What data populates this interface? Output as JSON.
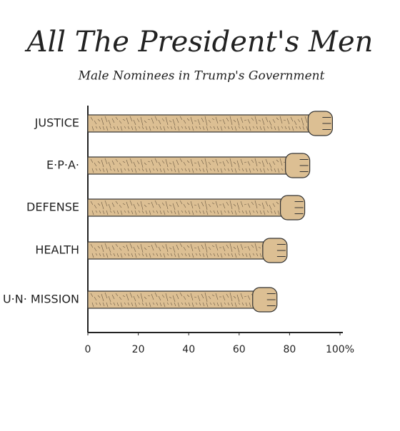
{
  "chart_data": {
    "type": "bar",
    "orientation": "horizontal",
    "title": "All The President's Men",
    "subtitle": "Male Nominees in Trump's Government",
    "categories": [
      "JUSTICE",
      "E·P·A·",
      "DEFENSE",
      "HEALTH",
      "U·N· MISSION"
    ],
    "values": [
      97,
      88,
      86,
      79,
      75
    ],
    "color": "#dcbf93",
    "xlim": [
      0,
      100
    ],
    "xticks": [
      0,
      20,
      40,
      60,
      80,
      {
        "value": 100,
        "label": "100%"
      }
    ]
  }
}
